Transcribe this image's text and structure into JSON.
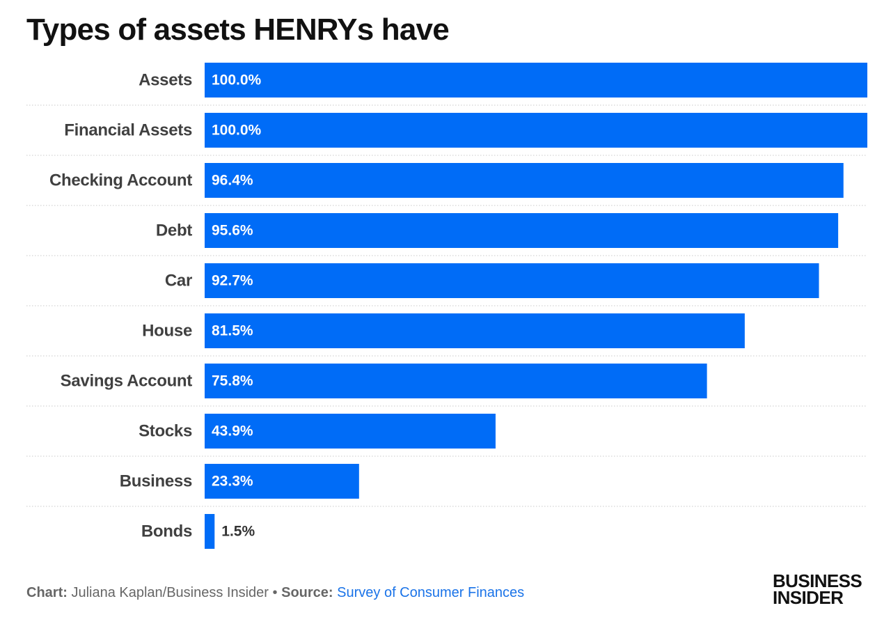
{
  "chart_data": {
    "type": "bar",
    "orientation": "horizontal",
    "title": "Types of assets HENRYs have",
    "categories": [
      "Assets",
      "Financial Assets",
      "Checking Account",
      "Debt",
      "Car",
      "House",
      "Savings Account",
      "Stocks",
      "Business",
      "Bonds"
    ],
    "values": [
      100.0,
      100.0,
      96.4,
      95.6,
      92.7,
      81.5,
      75.8,
      43.9,
      23.3,
      1.5
    ],
    "value_labels": [
      "100.0%",
      "100.0%",
      "96.4%",
      "95.6%",
      "92.7%",
      "81.5%",
      "75.8%",
      "43.9%",
      "23.3%",
      "1.5%"
    ],
    "xlim": [
      0,
      100
    ],
    "unit": "%",
    "grid": "dotted row separators",
    "bar_color": "#006cf7"
  },
  "footer": {
    "chart_label": "Chart:",
    "chart_credit": "Juliana Kaplan/Business Insider",
    "separator": "•",
    "source_label": "Source:",
    "source_text": "Survey of Consumer Finances"
  },
  "logo": {
    "line1": "BUSINESS",
    "line2": "INSIDER"
  },
  "colors": {
    "bar": "#006cf7",
    "link": "#1a73e8",
    "title": "#111111"
  }
}
